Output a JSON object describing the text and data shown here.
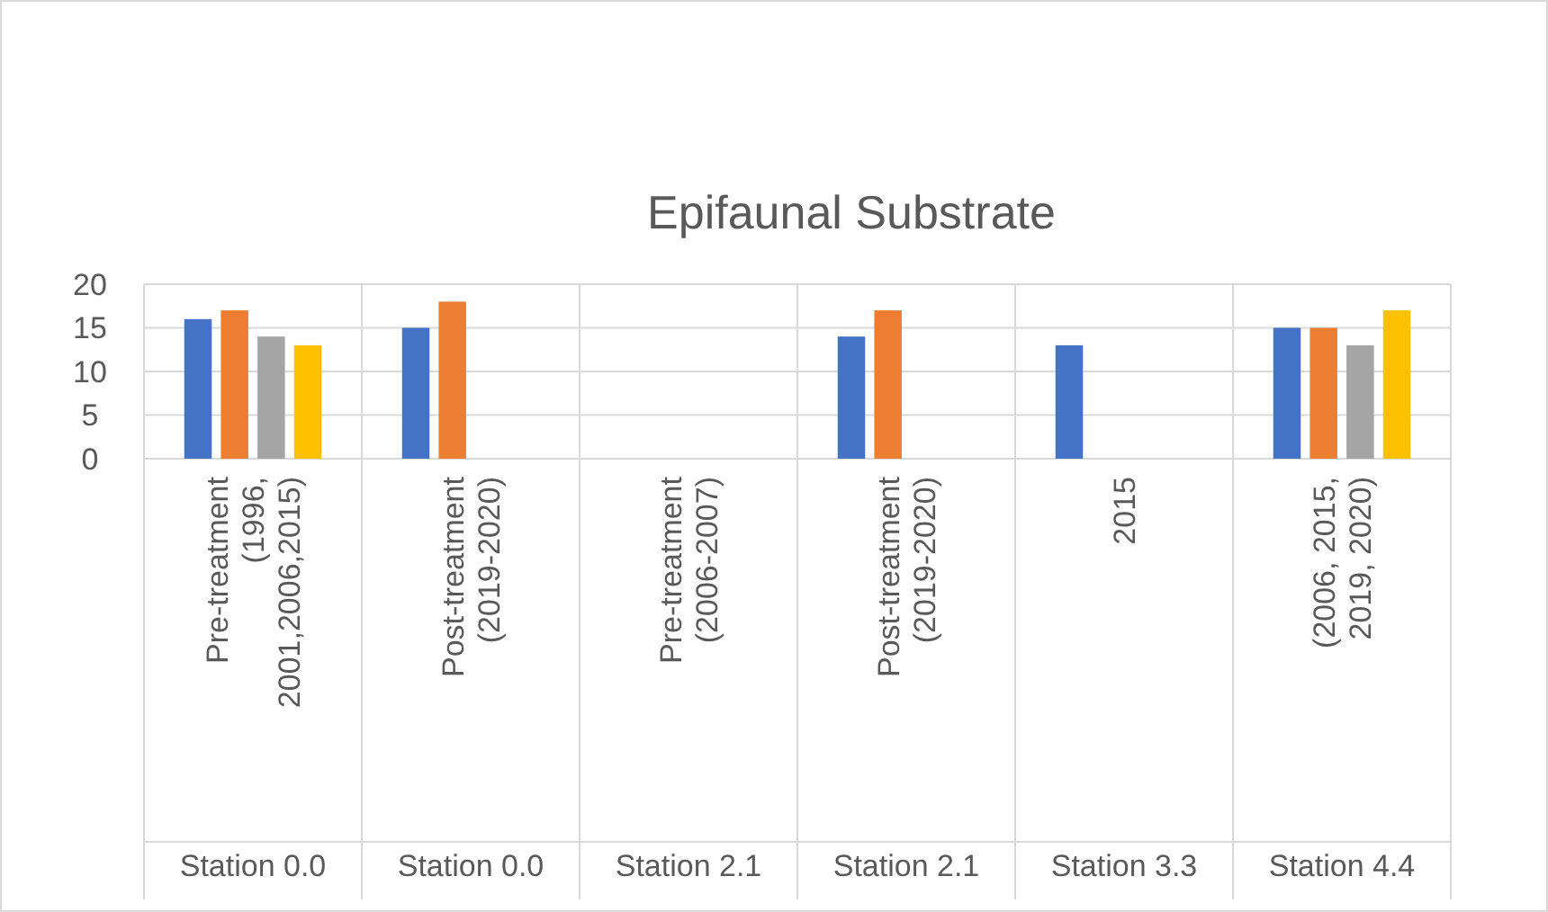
{
  "chart_data": {
    "type": "bar",
    "title": "Epifaunal Substrate",
    "categories": [
      "Pre-treatment (1996, 2001,2006,2015)",
      "Post-treatment (2019-2020)",
      "Pre-treatment (2006-2007)",
      "Post-treatment (2019-2020)",
      "2015",
      "(2006, 2015, 2019, 2020)"
    ],
    "annotations": [
      "Station 0.0",
      "Station 0.0",
      "Station 2.1",
      "Station 2.1",
      "Station 3.3",
      "Station 4.4"
    ],
    "series": [
      {
        "color": "#4472c4",
        "values": [
          16,
          15,
          null,
          14,
          13,
          15
        ]
      },
      {
        "color": "#ed7d31",
        "values": [
          17,
          18,
          null,
          17,
          null,
          15
        ]
      },
      {
        "color": "#a5a5a5",
        "values": [
          14,
          null,
          null,
          null,
          null,
          13
        ]
      },
      {
        "color": "#ffc000",
        "values": [
          13,
          null,
          null,
          null,
          null,
          17
        ]
      }
    ],
    "ylim": [
      0,
      20
    ],
    "yticks": [
      0,
      5,
      10,
      15,
      20
    ],
    "grid": "y"
  }
}
